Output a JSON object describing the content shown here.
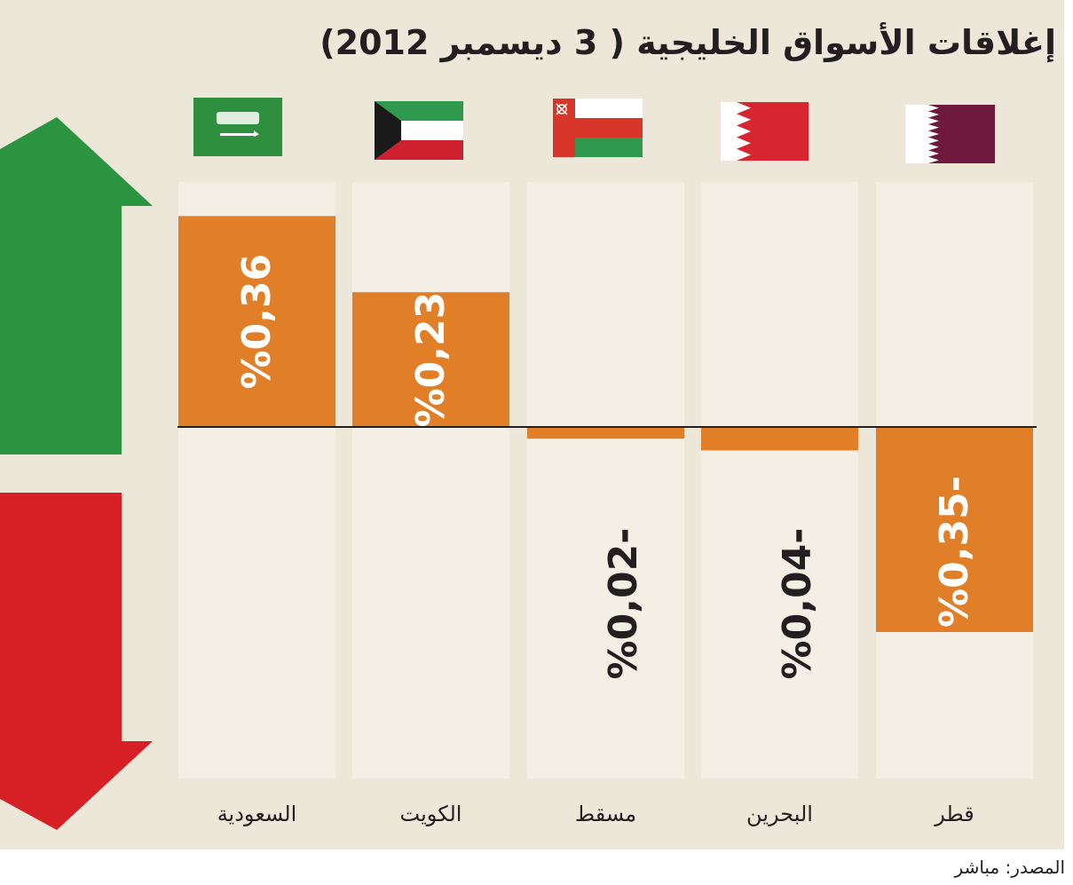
{
  "title": "إغلاقات الأسواق الخليجية ( 3 ديسمبر 2012)",
  "source": {
    "label": "المصدر:",
    "name": "مباشر"
  },
  "colors": {
    "background": "#ece7d9",
    "column": "#f3efe4",
    "bar": "#e07f27",
    "up_arrow": "#2a9440",
    "down_arrow": "#d71f26",
    "baseline": "#231f20",
    "value_on_bar": "#ffffff",
    "value_off_bar": "#231f20"
  },
  "chart_data": {
    "type": "bar",
    "orientation": "vertical",
    "title": "إغلاقات الأسواق الخليجية ( 3 ديسمبر 2012)",
    "xlabel": "",
    "ylabel": "",
    "unit": "%",
    "grid": false,
    "ylim": [
      -0.4,
      0.4
    ],
    "categories": [
      "السعودية",
      "الكويت",
      "مسقط",
      "البحرين",
      "قطر"
    ],
    "values": [
      0.36,
      0.23,
      -0.02,
      -0.04,
      -0.35
    ],
    "data_labels": [
      "%0,36",
      "%0,23",
      "%0,02-",
      "%0,04-",
      "%0,35-"
    ],
    "flags": [
      "saudi-arabia",
      "kuwait",
      "oman",
      "bahrain",
      "qatar"
    ]
  }
}
